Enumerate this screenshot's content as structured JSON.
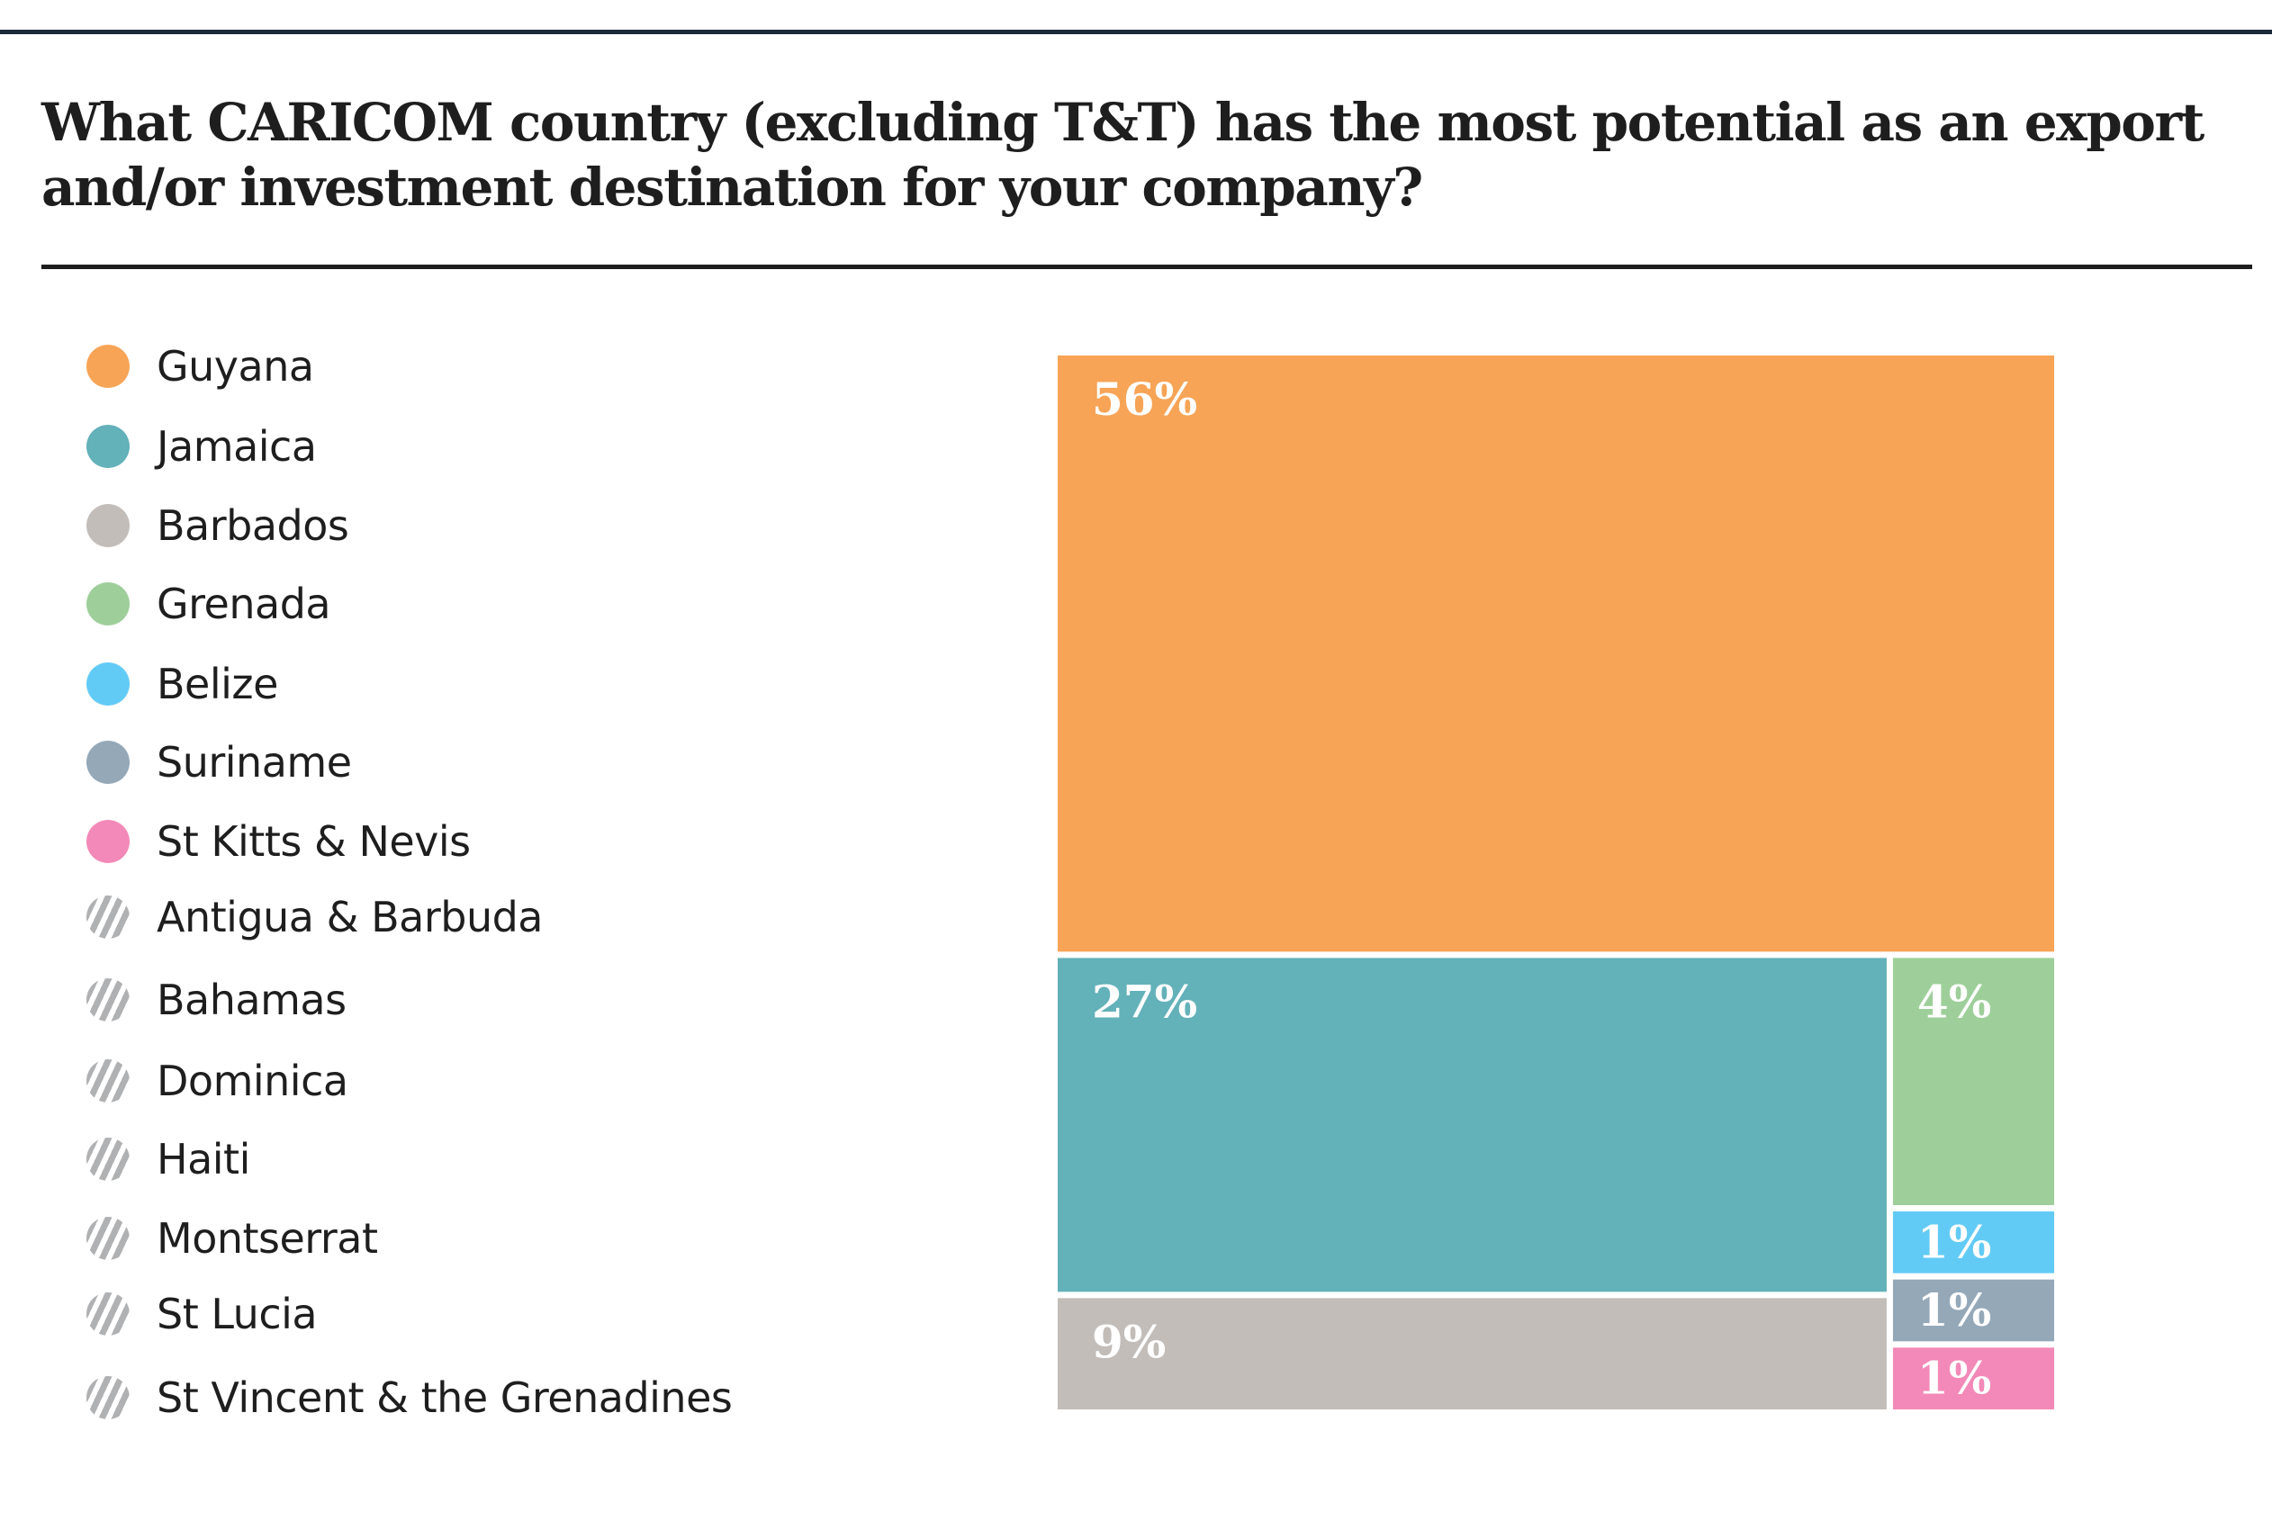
{
  "header": {
    "title": "What CARICOM country (excluding T&T) has the most potential as an export and/or investment destination for your company?"
  },
  "chart_data": {
    "type": "treemap",
    "title": "What CARICOM country (excluding T&T) has the most potential as an export and/or investment destination for your company?",
    "unit": "%",
    "legend_position": "left",
    "items": [
      {
        "name": "Guyana",
        "value": 56,
        "label": "56%",
        "color": "#f7a456"
      },
      {
        "name": "Jamaica",
        "value": 27,
        "label": "27%",
        "color": "#63b1b9"
      },
      {
        "name": "Barbados",
        "value": 9,
        "label": "9%",
        "color": "#c2bdb9"
      },
      {
        "name": "Grenada",
        "value": 4,
        "label": "4%",
        "color": "#9ecf9a"
      },
      {
        "name": "Belize",
        "value": 1,
        "label": "1%",
        "color": "#62cbf5"
      },
      {
        "name": "Suriname",
        "value": 1,
        "label": "1%",
        "color": "#94a8b8"
      },
      {
        "name": "St Kitts & Nevis",
        "value": 1,
        "label": "1%",
        "color": "#f389b8"
      },
      {
        "name": "Antigua & Barbuda",
        "value": 0,
        "label": "",
        "color": "hatched"
      },
      {
        "name": "Bahamas",
        "value": 0,
        "label": "",
        "color": "hatched"
      },
      {
        "name": "Dominica",
        "value": 0,
        "label": "",
        "color": "hatched"
      },
      {
        "name": "Haiti",
        "value": 0,
        "label": "",
        "color": "hatched"
      },
      {
        "name": "Montserrat",
        "value": 0,
        "label": "",
        "color": "hatched"
      },
      {
        "name": "St Lucia",
        "value": 0,
        "label": "",
        "color": "hatched"
      },
      {
        "name": "St Vincent & the Grenadines",
        "value": 0,
        "label": "",
        "color": "hatched"
      }
    ]
  }
}
